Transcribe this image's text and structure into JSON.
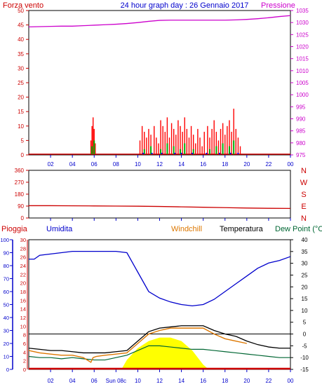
{
  "chart_data": [
    {
      "type": "line",
      "title": "24 hour graph day : 26 Gennaio 2017",
      "left_label": "Forza vento",
      "right_label": "Pressione",
      "ylim_left": [
        0,
        50
      ],
      "ylim_right": [
        975,
        1035
      ],
      "yticks_left": [
        "0",
        "5",
        "10",
        "15",
        "20",
        "25",
        "30",
        "35",
        "40",
        "45",
        "50"
      ],
      "yticks_right": [
        "975",
        "980",
        "985",
        "990",
        "995",
        "1000",
        "1005",
        "1010",
        "1015",
        "1020",
        "1025",
        "1030",
        "1035"
      ],
      "xticks": [
        "02",
        "04",
        "06",
        "08",
        "10",
        "12",
        "14",
        "16",
        "18",
        "20",
        "22",
        "00"
      ],
      "colors": {
        "pressure": "#cc00cc",
        "gust": "#ff0000",
        "wind": "#00aa00",
        "calm": "#0000ff",
        "axis": "#cc0000"
      },
      "series": [
        {
          "name": "Pressione",
          "x": [
            0,
            1,
            2,
            3,
            4,
            5,
            6,
            7,
            8,
            9,
            10,
            11,
            12,
            13,
            14,
            15,
            16,
            17,
            18,
            19,
            20,
            21,
            22,
            23,
            24
          ],
          "values": [
            1028.2,
            1028.3,
            1028.4,
            1028.5,
            1028.5,
            1028.7,
            1028.9,
            1029.1,
            1029.3,
            1029.6,
            1030.0,
            1030.5,
            1030.9,
            1031.0,
            1031.0,
            1031.0,
            1031.0,
            1031.0,
            1031.0,
            1031.1,
            1031.3,
            1031.6,
            1032.0,
            1032.5,
            1032.9
          ]
        }
      ],
      "gust_bars": [
        {
          "x": 5.7,
          "v": 5
        },
        {
          "x": 5.8,
          "v": 10
        },
        {
          "x": 5.9,
          "v": 13
        },
        {
          "x": 6.0,
          "v": 9
        },
        {
          "x": 6.1,
          "v": 4
        },
        {
          "x": 10.2,
          "v": 5
        },
        {
          "x": 10.4,
          "v": 10
        },
        {
          "x": 10.6,
          "v": 8
        },
        {
          "x": 10.8,
          "v": 6
        },
        {
          "x": 11.0,
          "v": 9
        },
        {
          "x": 11.2,
          "v": 7
        },
        {
          "x": 11.5,
          "v": 10
        },
        {
          "x": 11.7,
          "v": 6
        },
        {
          "x": 11.9,
          "v": 4
        },
        {
          "x": 12.1,
          "v": 12
        },
        {
          "x": 12.3,
          "v": 10
        },
        {
          "x": 12.5,
          "v": 8
        },
        {
          "x": 12.7,
          "v": 13
        },
        {
          "x": 12.9,
          "v": 6
        },
        {
          "x": 13.1,
          "v": 11
        },
        {
          "x": 13.3,
          "v": 9
        },
        {
          "x": 13.5,
          "v": 7
        },
        {
          "x": 13.7,
          "v": 12
        },
        {
          "x": 13.9,
          "v": 10
        },
        {
          "x": 14.1,
          "v": 8
        },
        {
          "x": 14.3,
          "v": 13
        },
        {
          "x": 14.5,
          "v": 9
        },
        {
          "x": 14.7,
          "v": 6
        },
        {
          "x": 14.9,
          "v": 10
        },
        {
          "x": 15.1,
          "v": 7
        },
        {
          "x": 15.3,
          "v": 4
        },
        {
          "x": 15.5,
          "v": 9
        },
        {
          "x": 15.7,
          "v": 6
        },
        {
          "x": 15.9,
          "v": 3
        },
        {
          "x": 16.1,
          "v": 8
        },
        {
          "x": 16.4,
          "v": 10
        },
        {
          "x": 16.6,
          "v": 6
        },
        {
          "x": 16.8,
          "v": 9
        },
        {
          "x": 17.0,
          "v": 12
        },
        {
          "x": 17.2,
          "v": 8
        },
        {
          "x": 17.4,
          "v": 5
        },
        {
          "x": 17.6,
          "v": 9
        },
        {
          "x": 17.8,
          "v": 11
        },
        {
          "x": 18.0,
          "v": 7
        },
        {
          "x": 18.2,
          "v": 10
        },
        {
          "x": 18.4,
          "v": 12
        },
        {
          "x": 18.6,
          "v": 8
        },
        {
          "x": 18.8,
          "v": 16
        },
        {
          "x": 19.0,
          "v": 9
        },
        {
          "x": 19.2,
          "v": 6
        },
        {
          "x": 19.4,
          "v": 3
        }
      ],
      "wind_bars": [
        {
          "x": 5.8,
          "v": 3
        },
        {
          "x": 6.0,
          "v": 5
        },
        {
          "x": 10.6,
          "v": 2
        },
        {
          "x": 11.2,
          "v": 3
        },
        {
          "x": 12.1,
          "v": 2
        },
        {
          "x": 12.7,
          "v": 4
        },
        {
          "x": 13.3,
          "v": 3
        },
        {
          "x": 13.9,
          "v": 2
        },
        {
          "x": 14.3,
          "v": 4
        },
        {
          "x": 15.1,
          "v": 2
        },
        {
          "x": 16.6,
          "v": 2
        },
        {
          "x": 17.2,
          "v": 3
        },
        {
          "x": 17.8,
          "v": 4
        },
        {
          "x": 18.4,
          "v": 3
        },
        {
          "x": 18.8,
          "v": 5
        }
      ]
    },
    {
      "type": "line",
      "yticks_left": [
        "0",
        "90",
        "180",
        "270",
        "360"
      ],
      "ylim": [
        0,
        360
      ],
      "right_labels": [
        "N",
        "W",
        "S",
        "E",
        "N"
      ],
      "xticks": [
        "02",
        "04",
        "06",
        "08",
        "10",
        "12",
        "14",
        "16",
        "18",
        "20",
        "22",
        "00"
      ],
      "series": [
        {
          "name": "",
          "x": [
            0,
            2,
            4,
            6,
            8,
            10,
            12,
            14,
            16,
            18,
            20,
            22,
            24
          ],
          "values": [
            93,
            93,
            92,
            91,
            90,
            89,
            87,
            84,
            81,
            78,
            75,
            73,
            72
          ]
        }
      ]
    },
    {
      "type": "line",
      "labels": {
        "rain": "Pioggia",
        "humidity": "Umidita",
        "windchill": "Windchill",
        "temperature": "Temperatura",
        "dewpoint": "Dew Point (°C"
      },
      "ylim_humidity": [
        0,
        100
      ],
      "ylim_rain": [
        0,
        30
      ],
      "ylim_temp": [
        -15,
        40
      ],
      "yticks_humidity": [
        "0",
        "10",
        "20",
        "30",
        "40",
        "50",
        "60",
        "70",
        "80",
        "90",
        "100"
      ],
      "yticks_rain": [
        "0",
        "2",
        "4",
        "6",
        "8",
        "10",
        "12",
        "14",
        "16",
        "18",
        "20",
        "22",
        "24",
        "26",
        "28",
        "30"
      ],
      "yticks_temp": [
        "-15",
        "-10",
        "-5",
        "0",
        "5",
        "10",
        "15",
        "20",
        "25",
        "30",
        "35",
        "40"
      ],
      "xticks": [
        "02",
        "04",
        "06",
        "Sun 08c",
        "10",
        "12",
        "14",
        "16",
        "18",
        "20",
        "22",
        "00"
      ],
      "colors": {
        "humidity": "#0000cc",
        "temperature": "#000000",
        "windchill": "#dd7700",
        "dewpoint": "#006633",
        "rain": "#cc0000",
        "sun": "#ffff00",
        "ref": "#000000"
      },
      "reference_line_temp": 0,
      "series": [
        {
          "name": "Umidita",
          "x": [
            0,
            0.5,
            1,
            2,
            3,
            4,
            5,
            6,
            7,
            8,
            9,
            10,
            11,
            12,
            13,
            14,
            15,
            16,
            17,
            18,
            19,
            20,
            21,
            22,
            23,
            24
          ],
          "values": [
            85,
            85,
            88,
            89,
            90,
            91,
            91,
            91,
            91,
            91,
            90,
            75,
            60,
            55,
            52,
            50,
            49,
            50,
            54,
            60,
            66,
            72,
            78,
            82,
            84,
            87
          ]
        },
        {
          "name": "Temperatura",
          "x": [
            0,
            1,
            2,
            3,
            4,
            5,
            6,
            7,
            8,
            9,
            10,
            11,
            12,
            13,
            14,
            15,
            16,
            17,
            18,
            19,
            20,
            21,
            22,
            23,
            24
          ],
          "values": [
            -6,
            -6.5,
            -7,
            -7,
            -7.5,
            -8,
            -8,
            -8,
            -7.5,
            -7,
            -3,
            1,
            2.5,
            3,
            3.5,
            3.5,
            3.5,
            1.5,
            0,
            -1,
            -3,
            -4.5,
            -5.5,
            -6,
            -6
          ]
        },
        {
          "name": "Windchill",
          "x": [
            0,
            1,
            2,
            3,
            4,
            5,
            5.7,
            5.9,
            6.2,
            7,
            8,
            9,
            10,
            11,
            12,
            13,
            14,
            15,
            16,
            17,
            18,
            19,
            20
          ],
          "values": [
            -7,
            -8,
            -8.5,
            -9,
            -9,
            -10,
            -12,
            -10,
            -9.5,
            -9,
            -8.5,
            -8,
            -4,
            0,
            1.5,
            2.5,
            2.5,
            2.5,
            2.5,
            0,
            -2,
            -3,
            -4
          ]
        },
        {
          "name": "Dew Point (°C",
          "x": [
            0,
            1,
            2,
            3,
            4,
            5,
            6,
            7,
            8,
            9,
            10,
            11,
            12,
            13,
            14,
            15,
            16,
            17,
            18,
            19,
            20,
            21,
            22,
            23,
            24
          ],
          "values": [
            -9.5,
            -10,
            -10,
            -10.5,
            -10,
            -10.5,
            -11,
            -11,
            -10,
            -9,
            -7,
            -5,
            -5,
            -5.5,
            -6,
            -6.5,
            -6.5,
            -7,
            -7.5,
            -8,
            -8.5,
            -9,
            -9.5,
            -10,
            -10
          ]
        },
        {
          "name": "sun",
          "x": [
            8.5,
            9,
            10,
            11,
            12,
            13,
            14,
            15,
            16,
            16.5
          ],
          "values": [
            -15,
            -11,
            -6,
            -3,
            -1.5,
            -1.5,
            -3,
            -7,
            -13,
            -15
          ]
        }
      ],
      "rain": 0
    }
  ]
}
